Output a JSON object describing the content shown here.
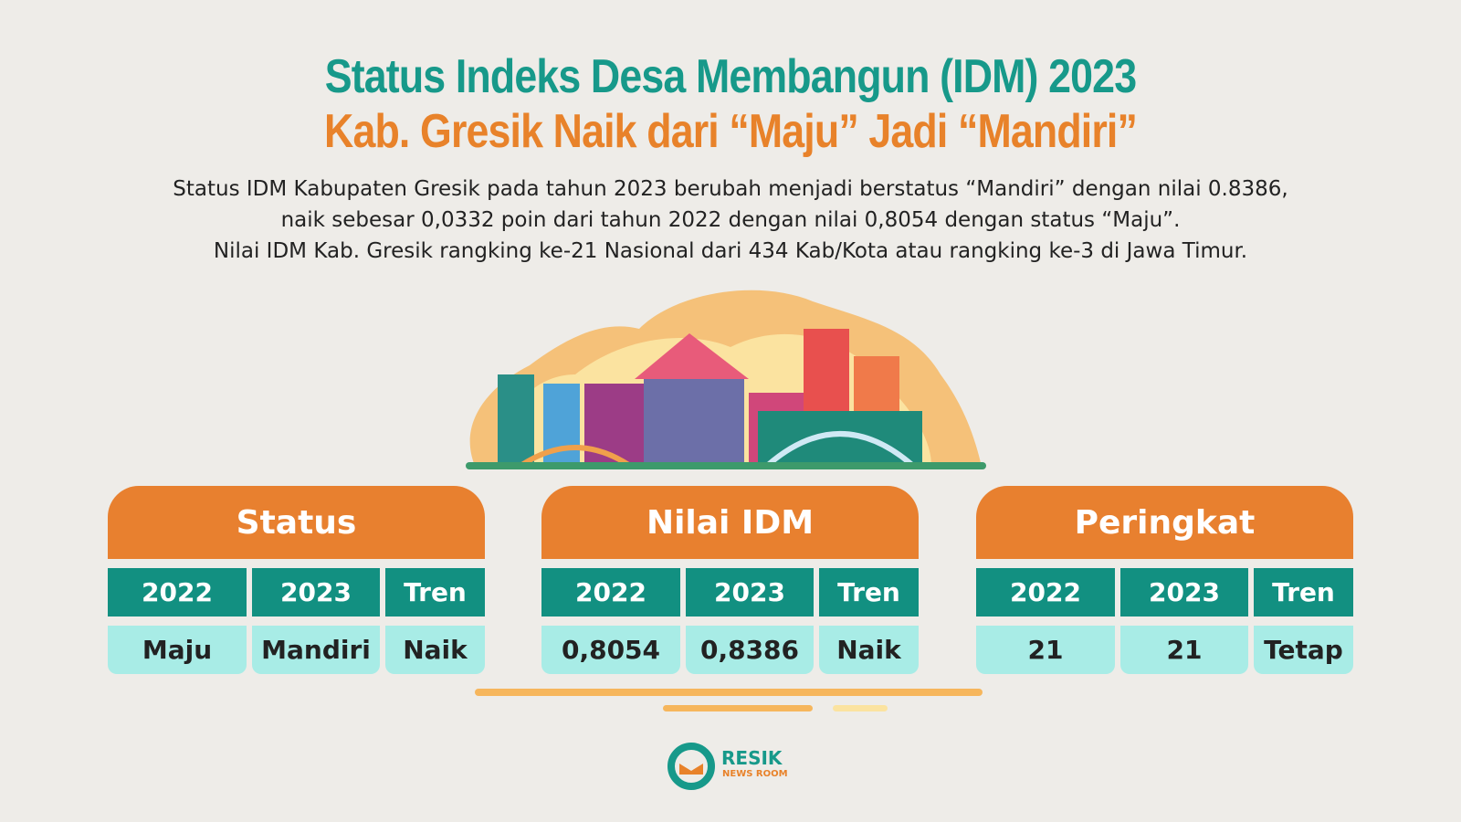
{
  "header": {
    "title": "Status Indeks Desa Membangun (IDM) 2023",
    "subtitle": "Kab. Gresik Naik dari “Maju” Jadi “Mandiri”"
  },
  "description": [
    "Status IDM Kabupaten Gresik pada tahun 2023 berubah menjadi berstatus “Mandiri” dengan nilai 0.8386,",
    "naik sebesar 0,0332 poin dari tahun 2022 dengan nilai 0,8054 dengan status “Maju”.",
    "Nilai IDM Kab. Gresik rangking ke-21 Nasional dari 434 Kab/Kota atau rangking ke-3 di Jawa Timur."
  ],
  "cards": [
    {
      "title": "Status",
      "columns": [
        "2022",
        "2023",
        "Tren"
      ],
      "values": [
        "Maju",
        "Mandiri",
        "Naik"
      ]
    },
    {
      "title": "Nilai IDM",
      "columns": [
        "2022",
        "2023",
        "Tren"
      ],
      "values": [
        "0,8054",
        "0,8386",
        "Naik"
      ]
    },
    {
      "title": "Peringkat",
      "columns": [
        "2022",
        "2023",
        "Tren"
      ],
      "values": [
        "21",
        "21",
        "Tetap"
      ]
    }
  ],
  "logo": {
    "name": "RESIK",
    "tagline": "NEWS ROOM"
  }
}
